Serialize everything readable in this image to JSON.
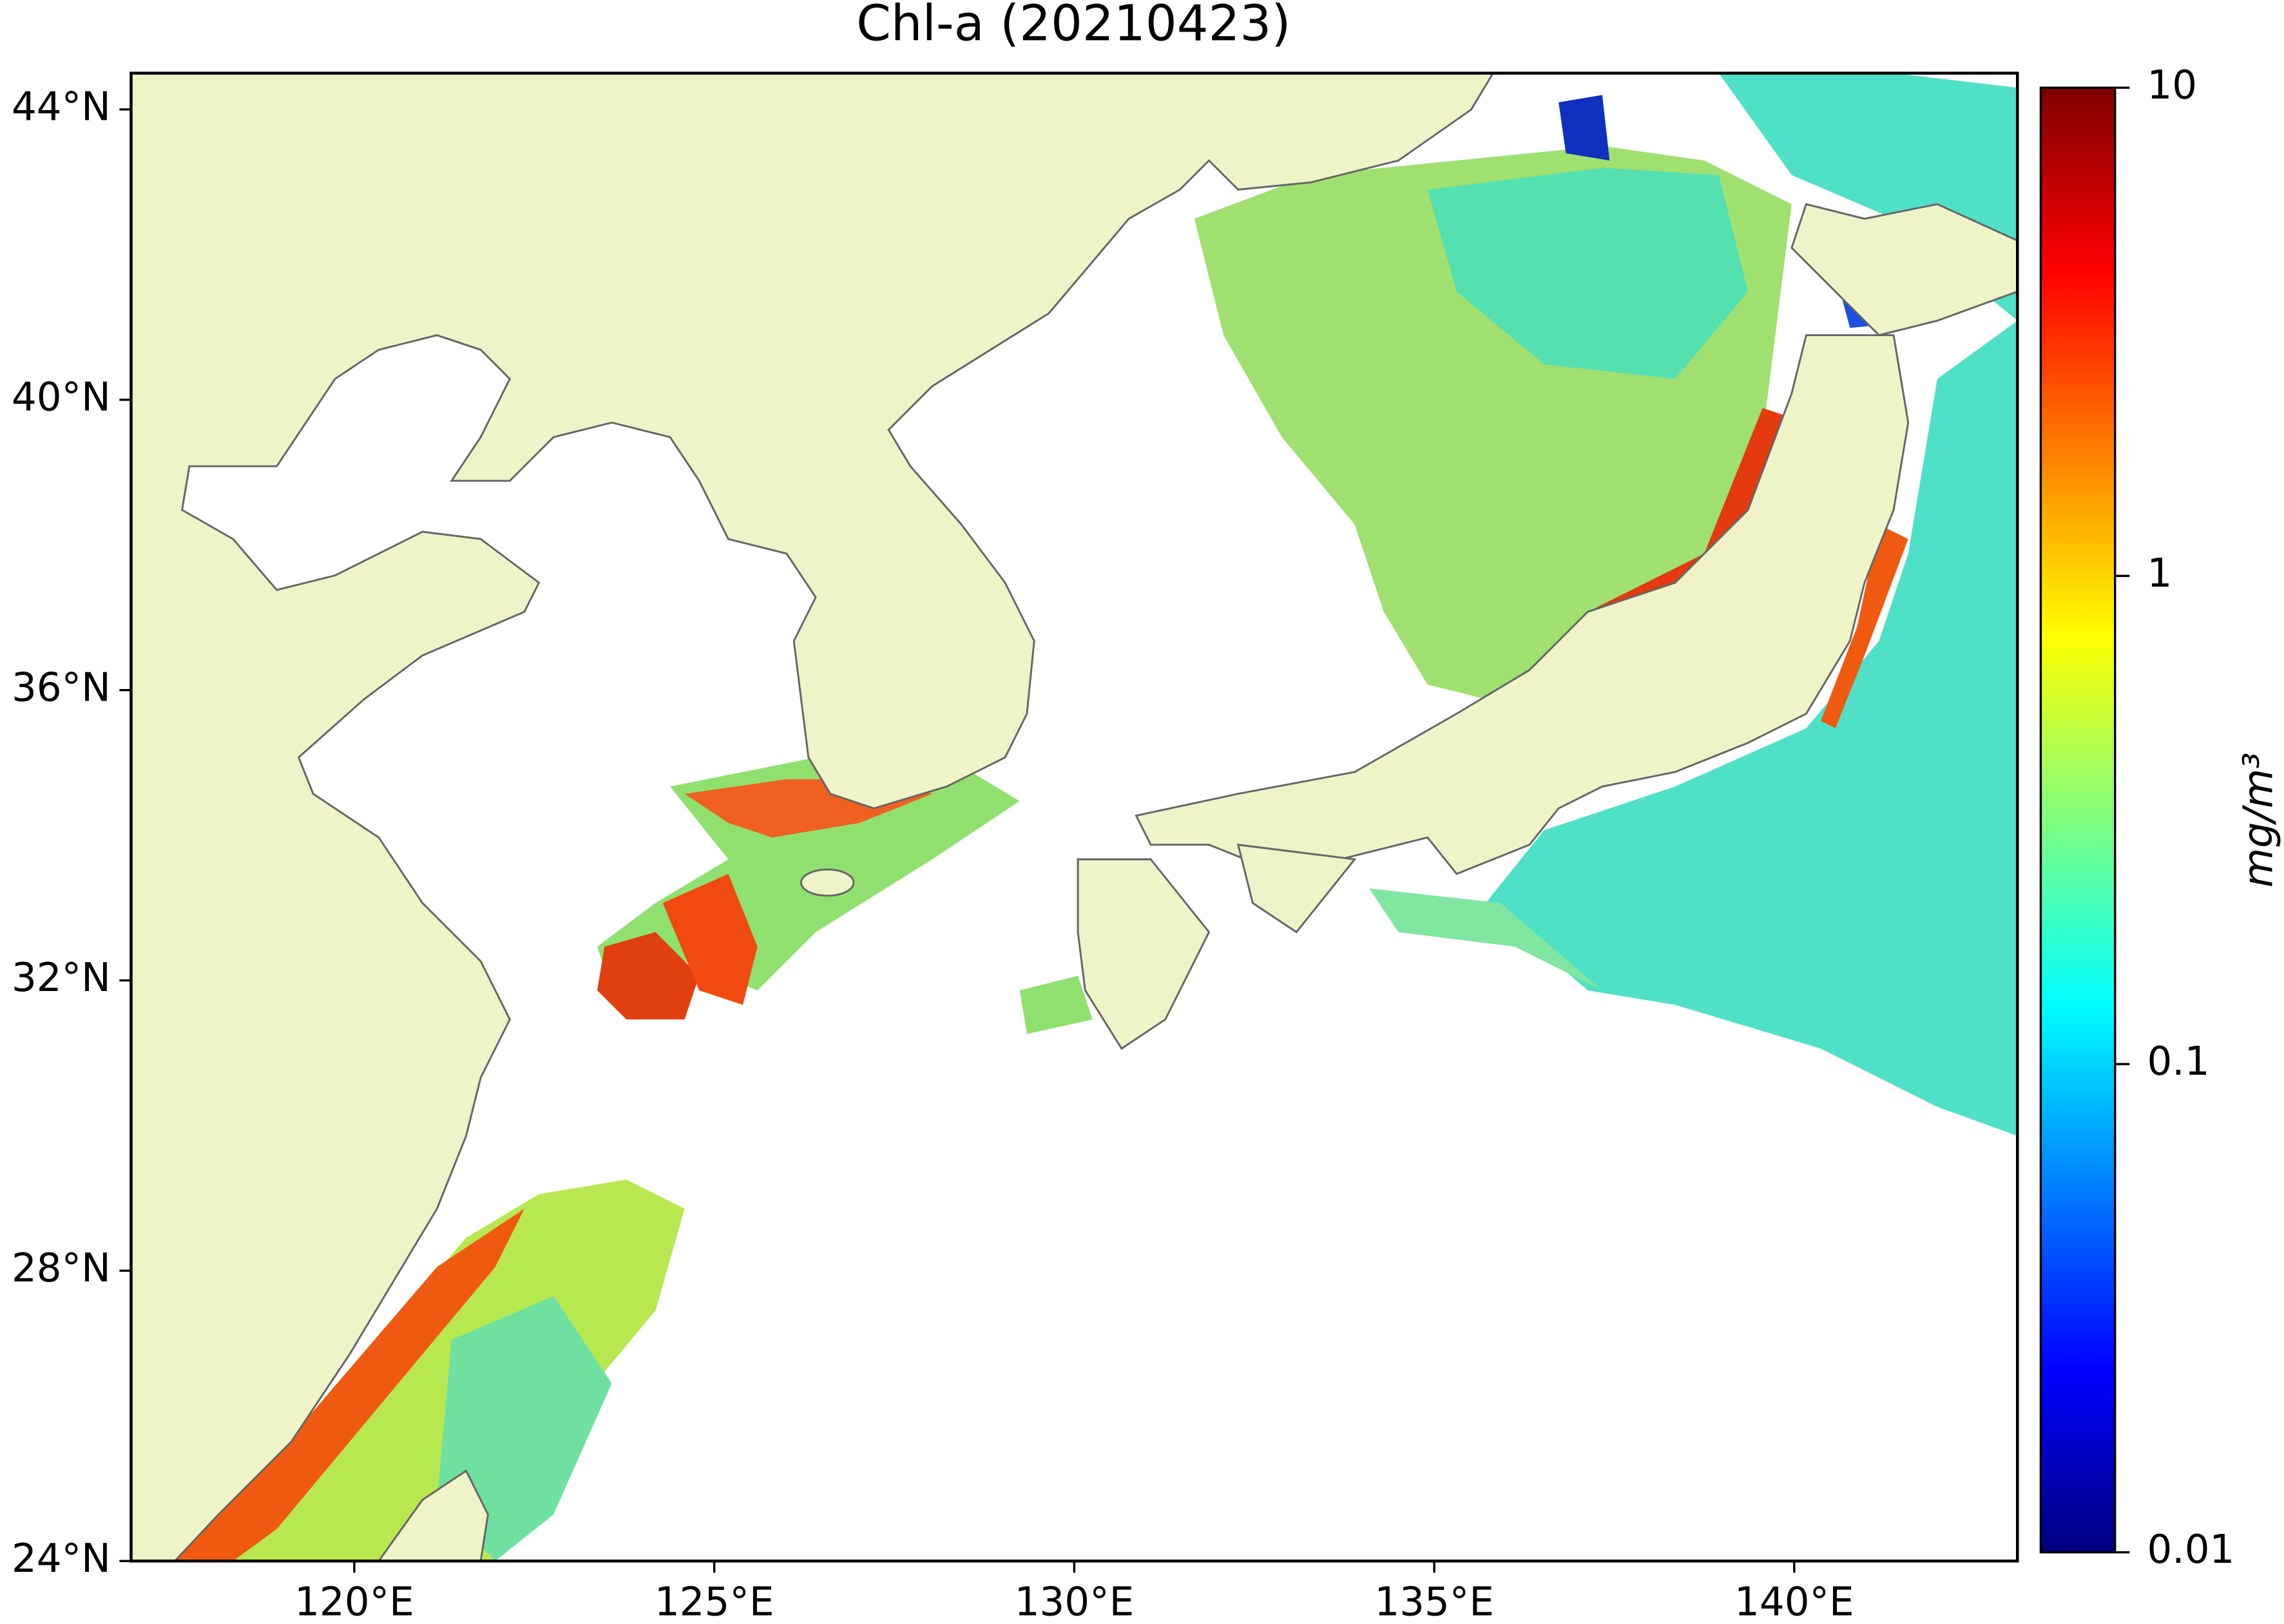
{
  "chart_data": {
    "type": "map",
    "title": "Chl-a (20210423)",
    "xlim": [
      116.9,
      143.1
    ],
    "ylim": [
      24,
      44.5
    ],
    "xticks": [
      {
        "value": 120,
        "label": "120°E"
      },
      {
        "value": 125,
        "label": "125°E"
      },
      {
        "value": 130,
        "label": "130°E"
      },
      {
        "value": 135,
        "label": "135°E"
      },
      {
        "value": 140,
        "label": "140°E"
      }
    ],
    "yticks": [
      {
        "value": 24,
        "label": "24°N"
      },
      {
        "value": 28,
        "label": "28°N"
      },
      {
        "value": 32,
        "label": "32°N"
      },
      {
        "value": 36,
        "label": "36°N"
      },
      {
        "value": 40,
        "label": "40°N"
      },
      {
        "value": 44,
        "label": "44°N"
      }
    ],
    "colorbar": {
      "label": "mg/m³",
      "lim": [
        0.01,
        10
      ],
      "log": true,
      "ticks": [
        0.01,
        0.1,
        1,
        10
      ],
      "colormap": "jet"
    },
    "land_color": "#eff3c8"
  }
}
